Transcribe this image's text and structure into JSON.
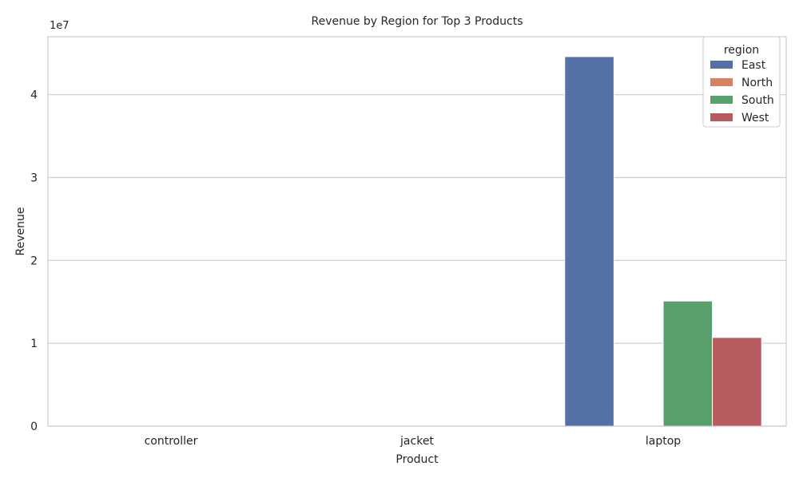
{
  "chart_data": {
    "type": "bar",
    "title": "Revenue by Region for Top 3 Products",
    "xlabel": "Product",
    "ylabel": "Revenue",
    "y_offset_label": "1e7",
    "ylim": [
      0,
      4.7
    ],
    "yticks": [
      0,
      1,
      2,
      3,
      4
    ],
    "categories": [
      "controller",
      "jacket",
      "laptop"
    ],
    "grid": "horizontal",
    "legend": {
      "title": "region",
      "placement": "top-right"
    },
    "series": [
      {
        "name": "East",
        "color": "#5471a5",
        "values": [
          0,
          0,
          4.46
        ]
      },
      {
        "name": "North",
        "color": "#d6845f",
        "values": [
          0,
          0,
          0
        ]
      },
      {
        "name": "South",
        "color": "#599f6b",
        "values": [
          0,
          0,
          1.51
        ]
      },
      {
        "name": "West",
        "color": "#b85b5f",
        "values": [
          0,
          0,
          1.07
        ]
      }
    ]
  }
}
